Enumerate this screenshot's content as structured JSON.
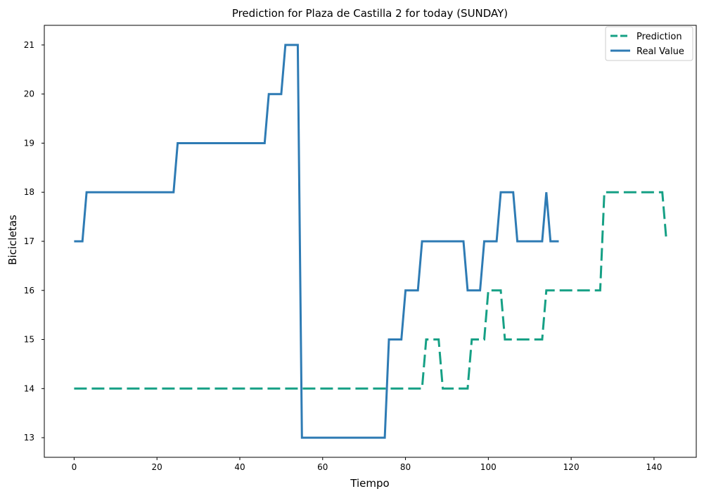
{
  "chart_data": {
    "type": "line",
    "title": "Prediction for Plaza de Castilla 2 for today (SUNDAY)",
    "xlabel": "Tiempo",
    "ylabel": "Bicicletas",
    "xlim": [
      -7.2,
      150.2
    ],
    "ylim": [
      12.6,
      21.4
    ],
    "xticks": [
      0,
      20,
      40,
      60,
      80,
      100,
      120,
      140
    ],
    "yticks": [
      13,
      14,
      15,
      16,
      17,
      18,
      19,
      20,
      21
    ],
    "grid": false,
    "legend": "top-right",
    "series": [
      {
        "name": "Prediction",
        "color": "#16a085",
        "style": "dashed",
        "x": [
          0,
          84,
          85,
          88,
          89,
          95,
          96,
          99,
          100,
          103,
          104,
          113,
          114,
          127,
          128,
          142,
          143
        ],
        "y": [
          14,
          14,
          15,
          15,
          14,
          14,
          15,
          15,
          16,
          16,
          15,
          15,
          16,
          16,
          18,
          18,
          17
        ]
      },
      {
        "name": "Real Value",
        "color": "#2e7bb4",
        "style": "solid",
        "x": [
          0,
          2,
          3,
          24,
          25,
          46,
          47,
          50,
          51,
          54,
          55,
          75,
          76,
          79,
          80,
          83,
          84,
          94,
          95,
          98,
          99,
          102,
          103,
          106,
          107,
          113,
          114,
          115,
          117
        ],
        "y": [
          17,
          17,
          18,
          18,
          19,
          19,
          20,
          20,
          21,
          21,
          13,
          13,
          15,
          15,
          16,
          16,
          17,
          17,
          16,
          16,
          17,
          17,
          18,
          18,
          17,
          17,
          18,
          17,
          17
        ]
      }
    ]
  }
}
